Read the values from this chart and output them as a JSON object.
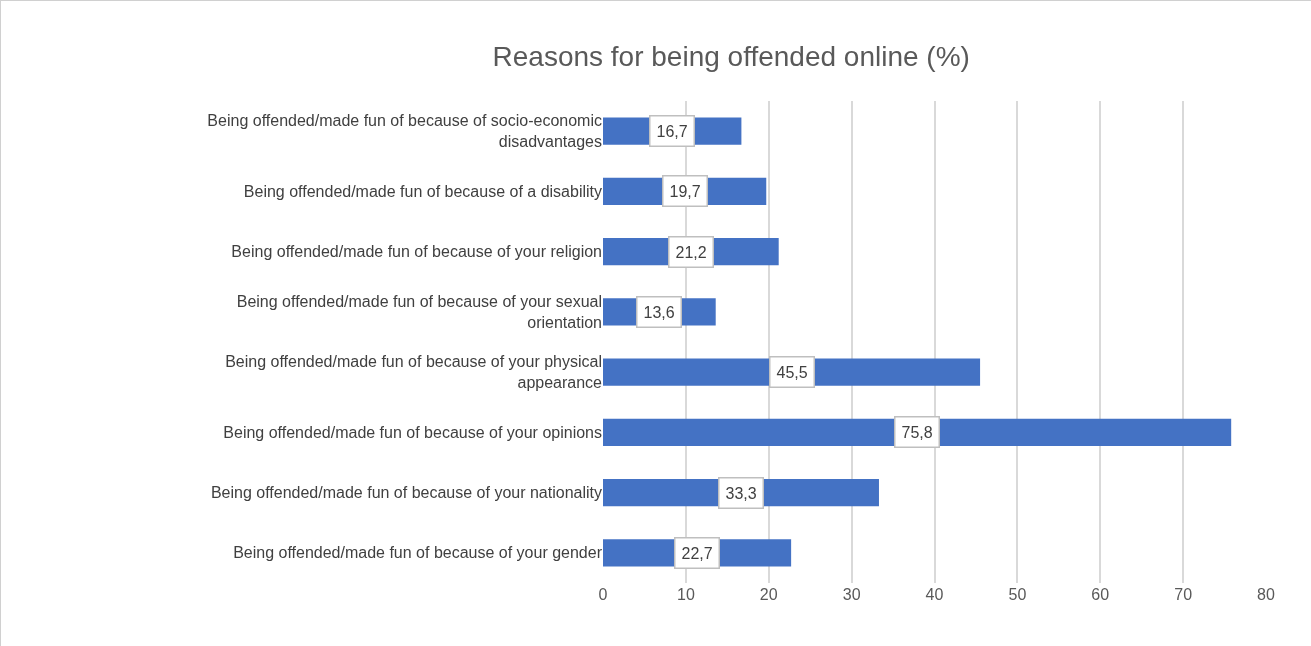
{
  "chart_data": {
    "type": "bar",
    "orientation": "horizontal",
    "title": "Reasons for being offended online (%)",
    "categories": [
      "Being offended/made fun of because of socio-economic disadvantages",
      "Being offended/made fun of because of a disability",
      "Being offended/made fun of because of your religion",
      "Being offended/made fun of because of your sexual orientation",
      "Being offended/made fun of because of your physical appearance",
      "Being offended/made fun of because of your opinions",
      "Being offended/made fun of because of your nationality",
      "Being offended/made fun of because of your gender"
    ],
    "values": [
      16.7,
      19.7,
      21.2,
      13.6,
      45.5,
      75.8,
      33.3,
      22.7
    ],
    "value_labels": [
      "16,7",
      "19,7",
      "21,2",
      "13,6",
      "45,5",
      "75,8",
      "33,3",
      "22,7"
    ],
    "color": "#4472c4",
    "xlim": [
      0,
      80
    ],
    "xticks": [
      0,
      10,
      20,
      30,
      40,
      50,
      60,
      70,
      80
    ],
    "grid": "x"
  }
}
